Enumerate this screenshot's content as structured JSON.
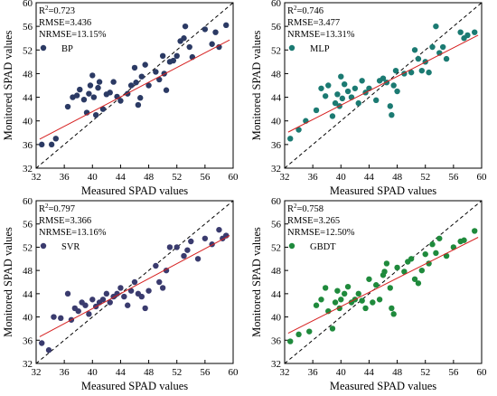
{
  "colors": {
    "BP": "#2b3a64",
    "MLP": "#1b7a72",
    "SVR": "#3a3b6e",
    "GBDT": "#1f8a3c",
    "fit_line": "#d62020",
    "one_to_one_line": "#000000"
  },
  "chart_data": [
    {
      "type": "scatter",
      "xlabel": "Measured SPAD values",
      "ylabel": "Monitored SPAD values",
      "xlim": [
        32,
        60
      ],
      "ylim": [
        32,
        60
      ],
      "xticks": [
        32,
        36,
        40,
        44,
        48,
        52,
        56,
        60
      ],
      "yticks": [
        32,
        36,
        40,
        44,
        48,
        52,
        56,
        60
      ],
      "one_to_one_line": true,
      "stats": {
        "r2_text": "=0.723",
        "rmse": "RMSE=3.436",
        "nrmse": "NRMSE=13.15%"
      },
      "legend": {
        "position": "top-left"
      },
      "series": [
        {
          "name": "BP",
          "fit": {
            "x": [
              32.5,
              59.5
            ],
            "y": [
              36.9,
              53.7
            ]
          },
          "points": [
            [
              32.8,
              36.0
            ],
            [
              34.2,
              36.0
            ],
            [
              34.8,
              37.0
            ],
            [
              36.5,
              42.4
            ],
            [
              37.2,
              44.0
            ],
            [
              37.8,
              44.3
            ],
            [
              38.2,
              45.3
            ],
            [
              38.8,
              43.6
            ],
            [
              39.2,
              41.4
            ],
            [
              39.5,
              44.6
            ],
            [
              39.7,
              46.0
            ],
            [
              40.0,
              47.7
            ],
            [
              40.2,
              44.0
            ],
            [
              40.5,
              41.0
            ],
            [
              40.8,
              45.6
            ],
            [
              41.0,
              46.6
            ],
            [
              41.5,
              42.0
            ],
            [
              42.0,
              44.5
            ],
            [
              42.5,
              44.8
            ],
            [
              43.0,
              46.6
            ],
            [
              43.5,
              44.1
            ],
            [
              44.0,
              43.4
            ],
            [
              45.0,
              44.6
            ],
            [
              45.5,
              46.0
            ],
            [
              46.0,
              49.0
            ],
            [
              46.2,
              46.5
            ],
            [
              46.5,
              42.7
            ],
            [
              46.8,
              43.9
            ],
            [
              47.0,
              47.5
            ],
            [
              47.5,
              49.5
            ],
            [
              48.0,
              46.0
            ],
            [
              49.0,
              48.3
            ],
            [
              49.5,
              47.0
            ],
            [
              50.0,
              51.0
            ],
            [
              50.2,
              48.0
            ],
            [
              50.5,
              45.2
            ],
            [
              51.0,
              50.0
            ],
            [
              51.5,
              50.2
            ],
            [
              52.0,
              51.0
            ],
            [
              52.5,
              53.5
            ],
            [
              53.0,
              54.0
            ],
            [
              53.2,
              56.0
            ],
            [
              53.8,
              52.5
            ],
            [
              54.2,
              50.8
            ],
            [
              56.0,
              55.5
            ],
            [
              57.0,
              53.0
            ],
            [
              57.5,
              55.0
            ],
            [
              58.0,
              52.5
            ],
            [
              59.0,
              56.2
            ]
          ]
        }
      ]
    },
    {
      "type": "scatter",
      "xlabel": "Measured SPAD values",
      "ylabel": "Monitored SPAD values",
      "xlim": [
        32,
        60
      ],
      "ylim": [
        32,
        60
      ],
      "xticks": [
        32,
        36,
        40,
        44,
        48,
        52,
        56,
        60
      ],
      "yticks": [
        32,
        36,
        40,
        44,
        48,
        52,
        56,
        60
      ],
      "one_to_one_line": true,
      "stats": {
        "r2_text": "=0.746",
        "rmse": "RMSE=3.477",
        "nrmse": "NRMSE=13.31%"
      },
      "legend": {
        "position": "top-left"
      },
      "series": [
        {
          "name": "MLP",
          "fit": {
            "x": [
              32.5,
              59.5
            ],
            "y": [
              38.1,
              54.5
            ]
          },
          "points": [
            [
              32.8,
              37.0
            ],
            [
              34.0,
              38.5
            ],
            [
              35.0,
              40.0
            ],
            [
              36.5,
              41.8
            ],
            [
              37.2,
              45.5
            ],
            [
              37.8,
              44.2
            ],
            [
              38.2,
              46.0
            ],
            [
              38.8,
              40.8
            ],
            [
              39.2,
              43.0
            ],
            [
              39.5,
              44.5
            ],
            [
              39.8,
              42.5
            ],
            [
              40.0,
              47.5
            ],
            [
              40.2,
              43.8
            ],
            [
              40.5,
              46.2
            ],
            [
              41.0,
              45.0
            ],
            [
              41.5,
              44.0
            ],
            [
              42.0,
              45.5
            ],
            [
              42.5,
              43.0
            ],
            [
              43.0,
              46.8
            ],
            [
              43.5,
              44.8
            ],
            [
              44.0,
              45.5
            ],
            [
              45.0,
              43.5
            ],
            [
              45.5,
              46.8
            ],
            [
              46.0,
              47.2
            ],
            [
              46.5,
              46.5
            ],
            [
              47.0,
              42.5
            ],
            [
              47.2,
              41.0
            ],
            [
              47.5,
              46.0
            ],
            [
              47.8,
              48.5
            ],
            [
              48.0,
              45.0
            ],
            [
              49.0,
              48.0
            ],
            [
              50.0,
              48.2
            ],
            [
              50.5,
              52.0
            ],
            [
              51.0,
              50.5
            ],
            [
              51.5,
              48.5
            ],
            [
              52.0,
              50.0
            ],
            [
              52.5,
              48.2
            ],
            [
              53.0,
              52.5
            ],
            [
              53.5,
              56.0
            ],
            [
              54.0,
              51.5
            ],
            [
              54.5,
              52.5
            ],
            [
              55.0,
              50.5
            ],
            [
              57.0,
              55.0
            ],
            [
              57.5,
              54.0
            ],
            [
              58.0,
              54.5
            ],
            [
              59.0,
              55.0
            ]
          ]
        }
      ]
    },
    {
      "type": "scatter",
      "xlabel": "Measured SPAD values",
      "ylabel": "Monitored SPAD values",
      "xlim": [
        32,
        60
      ],
      "ylim": [
        32,
        60
      ],
      "xticks": [
        32,
        36,
        40,
        44,
        48,
        52,
        56,
        60
      ],
      "yticks": [
        32,
        36,
        40,
        44,
        48,
        52,
        56,
        60
      ],
      "one_to_one_line": true,
      "stats": {
        "r2_text": "=0.797",
        "rmse": "RMSE=3.366",
        "nrmse": "NRMSE=13.16%"
      },
      "legend": {
        "position": "top-left"
      },
      "series": [
        {
          "name": "SVR",
          "fit": {
            "x": [
              32.5,
              59.5
            ],
            "y": [
              36.6,
              54.0
            ]
          },
          "points": [
            [
              32.8,
              35.5
            ],
            [
              33.8,
              34.3
            ],
            [
              34.5,
              40.0
            ],
            [
              35.5,
              39.8
            ],
            [
              36.5,
              44.0
            ],
            [
              37.0,
              39.5
            ],
            [
              37.5,
              41.5
            ],
            [
              38.0,
              41.0
            ],
            [
              38.5,
              42.5
            ],
            [
              39.0,
              42.0
            ],
            [
              39.5,
              40.5
            ],
            [
              40.0,
              43.0
            ],
            [
              40.5,
              41.8
            ],
            [
              41.0,
              42.5
            ],
            [
              41.5,
              43.0
            ],
            [
              42.0,
              44.0
            ],
            [
              42.5,
              42.5
            ],
            [
              43.0,
              43.5
            ],
            [
              43.5,
              44.0
            ],
            [
              44.0,
              45.0
            ],
            [
              44.5,
              43.5
            ],
            [
              45.0,
              42.0
            ],
            [
              45.5,
              44.5
            ],
            [
              46.0,
              46.0
            ],
            [
              46.5,
              44.0
            ],
            [
              47.0,
              43.5
            ],
            [
              47.5,
              41.5
            ],
            [
              48.0,
              44.5
            ],
            [
              49.0,
              48.8
            ],
            [
              49.5,
              46.0
            ],
            [
              50.0,
              45.0
            ],
            [
              50.5,
              48.0
            ],
            [
              51.0,
              52.0
            ],
            [
              52.0,
              52.0
            ],
            [
              53.0,
              50.5
            ],
            [
              53.5,
              51.5
            ],
            [
              54.0,
              53.0
            ],
            [
              55.0,
              50.0
            ],
            [
              56.0,
              53.5
            ],
            [
              57.0,
              52.5
            ],
            [
              58.0,
              55.0
            ],
            [
              58.5,
              53.5
            ],
            [
              59.0,
              54.0
            ]
          ]
        }
      ]
    },
    {
      "type": "scatter",
      "xlabel": "Measured SPAD values",
      "ylabel": "Monitored SPAD values",
      "xlim": [
        32,
        60
      ],
      "ylim": [
        32,
        60
      ],
      "xticks": [
        32,
        36,
        40,
        44,
        48,
        52,
        56,
        60
      ],
      "yticks": [
        32,
        36,
        40,
        44,
        48,
        52,
        56,
        60
      ],
      "one_to_one_line": true,
      "stats": {
        "r2_text": "=0.758",
        "rmse": "RMSE=3.265",
        "nrmse": "NRMSE=12.50%"
      },
      "legend": {
        "position": "top-left"
      },
      "series": [
        {
          "name": "GBDT",
          "fit": {
            "x": [
              32.5,
              59.5
            ],
            "y": [
              37.2,
              53.7
            ]
          },
          "points": [
            [
              32.8,
              35.8
            ],
            [
              34.0,
              37.0
            ],
            [
              35.5,
              37.5
            ],
            [
              36.5,
              42.0
            ],
            [
              37.2,
              43.0
            ],
            [
              37.8,
              45.0
            ],
            [
              38.2,
              41.0
            ],
            [
              38.8,
              38.0
            ],
            [
              39.2,
              42.5
            ],
            [
              39.5,
              44.5
            ],
            [
              39.8,
              41.5
            ],
            [
              40.0,
              43.0
            ],
            [
              40.5,
              44.0
            ],
            [
              41.0,
              45.2
            ],
            [
              41.5,
              42.5
            ],
            [
              42.0,
              43.0
            ],
            [
              42.5,
              44.0
            ],
            [
              43.0,
              42.8
            ],
            [
              43.5,
              41.5
            ],
            [
              44.0,
              46.5
            ],
            [
              44.5,
              42.5
            ],
            [
              45.0,
              45.5
            ],
            [
              45.5,
              43.0
            ],
            [
              46.0,
              47.2
            ],
            [
              46.2,
              47.8
            ],
            [
              46.5,
              49.2
            ],
            [
              47.0,
              45.0
            ],
            [
              47.2,
              41.5
            ],
            [
              47.5,
              40.5
            ],
            [
              48.0,
              48.5
            ],
            [
              49.0,
              47.8
            ],
            [
              49.5,
              49.5
            ],
            [
              50.0,
              50.0
            ],
            [
              50.5,
              46.5
            ],
            [
              51.0,
              45.8
            ],
            [
              51.5,
              48.0
            ],
            [
              52.0,
              50.8
            ],
            [
              52.5,
              49.2
            ],
            [
              53.0,
              52.5
            ],
            [
              53.5,
              51.0
            ],
            [
              54.0,
              53.5
            ],
            [
              55.0,
              50.5
            ],
            [
              56.0,
              52.0
            ],
            [
              57.0,
              53.0
            ],
            [
              57.5,
              53.2
            ],
            [
              59.0,
              54.8
            ]
          ]
        }
      ]
    }
  ]
}
